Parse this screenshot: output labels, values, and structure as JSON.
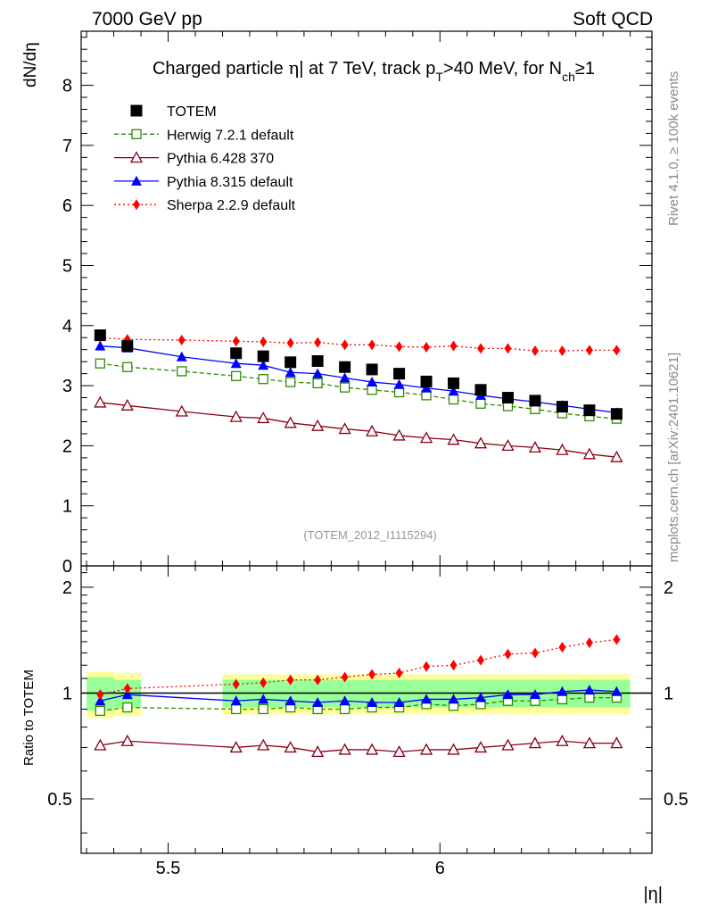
{
  "header": {
    "left": "7000 GeV pp",
    "right": "Soft QCD"
  },
  "side_labels": {
    "rivet": "Rivet 4.1.0, ≥ 100k events",
    "mcplots": "mcplots.cern.ch [arXiv:2401.10621]"
  },
  "colors": {
    "totem": "#000000",
    "herwig": "#2e8b00",
    "pythia6": "#8b0014",
    "pythia8": "#0000ff",
    "sherpa": "#ff0000",
    "band_inner": "#99ff99",
    "band_outer": "#ffff99"
  },
  "chart_data": [
    {
      "type": "scatter",
      "title_parts": {
        "t1": "Charged particle ",
        "t2": "η",
        "t3": "| at 7 TeV, track p",
        "t3_sub": "T",
        "t4": ">40 MeV, for N",
        "t4_sub": "ch",
        "t5": "≥1"
      },
      "ylabel": "dN/dη",
      "xlabel": "|η|",
      "xlim": [
        5.34,
        6.39
      ],
      "ylim": [
        0,
        8.9
      ],
      "yticks": [
        0,
        1,
        2,
        3,
        4,
        5,
        6,
        7,
        8
      ],
      "annotation": "(TOTEM_2012_I1115294)",
      "series": [
        {
          "name": "TOTEM",
          "marker": "filled-square",
          "x": [
            5.375,
            5.425,
            5.625,
            5.675,
            5.725,
            5.775,
            5.825,
            5.875,
            5.925,
            5.975,
            6.025,
            6.075,
            6.125,
            6.175,
            6.225,
            6.275,
            6.325
          ],
          "y": [
            3.84,
            3.66,
            3.54,
            3.49,
            3.39,
            3.41,
            3.31,
            3.27,
            3.2,
            3.07,
            3.04,
            2.93,
            2.8,
            2.75,
            2.65,
            2.59,
            2.53
          ]
        },
        {
          "name": "Herwig 7.2.1 default",
          "marker": "open-square",
          "x": [
            5.375,
            5.425,
            5.525,
            5.625,
            5.675,
            5.725,
            5.775,
            5.825,
            5.875,
            5.925,
            5.975,
            6.025,
            6.075,
            6.125,
            6.175,
            6.225,
            6.275,
            6.325
          ],
          "y": [
            3.37,
            3.31,
            3.24,
            3.16,
            3.11,
            3.06,
            3.04,
            2.97,
            2.93,
            2.89,
            2.84,
            2.77,
            2.7,
            2.66,
            2.61,
            2.54,
            2.49,
            2.45
          ]
        },
        {
          "name": "Pythia 6.428 370",
          "marker": "open-triangle",
          "x": [
            5.375,
            5.425,
            5.525,
            5.625,
            5.675,
            5.725,
            5.775,
            5.825,
            5.875,
            5.925,
            5.975,
            6.025,
            6.075,
            6.125,
            6.175,
            6.225,
            6.275,
            6.325
          ],
          "y": [
            2.72,
            2.67,
            2.57,
            2.48,
            2.46,
            2.38,
            2.33,
            2.28,
            2.24,
            2.17,
            2.13,
            2.1,
            2.04,
            2.0,
            1.97,
            1.93,
            1.86,
            1.81
          ]
        },
        {
          "name": "Pythia 8.315 default",
          "marker": "filled-triangle",
          "x": [
            5.375,
            5.425,
            5.525,
            5.625,
            5.675,
            5.725,
            5.775,
            5.825,
            5.875,
            5.925,
            5.975,
            6.025,
            6.075,
            6.125,
            6.175,
            6.225,
            6.275,
            6.325
          ],
          "y": [
            3.66,
            3.63,
            3.48,
            3.37,
            3.34,
            3.22,
            3.2,
            3.13,
            3.06,
            3.02,
            2.96,
            2.91,
            2.84,
            2.78,
            2.73,
            2.67,
            2.61,
            2.55
          ]
        },
        {
          "name": "Sherpa 2.2.9 default",
          "marker": "diamond",
          "x": [
            5.375,
            5.425,
            5.525,
            5.625,
            5.675,
            5.725,
            5.775,
            5.825,
            5.875,
            5.925,
            5.975,
            6.025,
            6.075,
            6.125,
            6.175,
            6.225,
            6.275,
            6.325
          ],
          "y": [
            3.8,
            3.77,
            3.76,
            3.74,
            3.73,
            3.71,
            3.72,
            3.68,
            3.68,
            3.65,
            3.64,
            3.66,
            3.62,
            3.62,
            3.58,
            3.58,
            3.59,
            3.59
          ]
        }
      ]
    },
    {
      "type": "scatter",
      "title": "",
      "ylabel": "Ratio to TOTEM",
      "xlabel": "|η|",
      "xlim": [
        5.34,
        6.39
      ],
      "ylim": [
        0.35,
        2.3
      ],
      "yticks": [
        0.5,
        1,
        2
      ],
      "xticks": [
        5.5,
        6
      ],
      "reference": 1.0,
      "bands": [
        {
          "x0": 5.35,
          "x1": 5.4,
          "inner": [
            0.89,
            1.11
          ],
          "outer": [
            0.85,
            1.15
          ]
        },
        {
          "x0": 5.4,
          "x1": 5.45,
          "inner": [
            0.91,
            1.09
          ],
          "outer": [
            0.86,
            1.14
          ]
        },
        {
          "x0": 5.6,
          "x1": 6.35,
          "inner": [
            0.91,
            1.09
          ],
          "outer": [
            0.87,
            1.13
          ]
        }
      ],
      "series": [
        {
          "name": "Herwig 7.2.1 default",
          "marker": "open-square",
          "x": [
            5.375,
            5.425,
            5.625,
            5.675,
            5.725,
            5.775,
            5.825,
            5.875,
            5.925,
            5.975,
            6.025,
            6.075,
            6.125,
            6.175,
            6.225,
            6.275,
            6.325
          ],
          "y": [
            0.89,
            0.91,
            0.9,
            0.9,
            0.91,
            0.9,
            0.9,
            0.91,
            0.91,
            0.93,
            0.92,
            0.93,
            0.95,
            0.95,
            0.96,
            0.97,
            0.97
          ]
        },
        {
          "name": "Pythia 6.428 370",
          "marker": "open-triangle",
          "x": [
            5.375,
            5.425,
            5.625,
            5.675,
            5.725,
            5.775,
            5.825,
            5.875,
            5.925,
            5.975,
            6.025,
            6.075,
            6.125,
            6.175,
            6.225,
            6.275,
            6.325
          ],
          "y": [
            0.71,
            0.73,
            0.7,
            0.71,
            0.7,
            0.68,
            0.69,
            0.69,
            0.68,
            0.69,
            0.69,
            0.7,
            0.71,
            0.72,
            0.73,
            0.72,
            0.72
          ]
        },
        {
          "name": "Pythia 8.315 default",
          "marker": "filled-triangle",
          "x": [
            5.375,
            5.425,
            5.625,
            5.675,
            5.725,
            5.775,
            5.825,
            5.875,
            5.925,
            5.975,
            6.025,
            6.075,
            6.125,
            6.175,
            6.225,
            6.275,
            6.325
          ],
          "y": [
            0.95,
            0.99,
            0.95,
            0.96,
            0.95,
            0.94,
            0.95,
            0.94,
            0.94,
            0.96,
            0.96,
            0.97,
            0.99,
            0.99,
            1.01,
            1.02,
            1.01
          ]
        },
        {
          "name": "Sherpa 2.2.9 default",
          "marker": "diamond",
          "x": [
            5.375,
            5.425,
            5.625,
            5.675,
            5.725,
            5.775,
            5.825,
            5.875,
            5.925,
            5.975,
            6.025,
            6.075,
            6.125,
            6.175,
            6.225,
            6.275,
            6.325
          ],
          "y": [
            0.99,
            1.03,
            1.06,
            1.07,
            1.09,
            1.09,
            1.11,
            1.13,
            1.14,
            1.19,
            1.2,
            1.24,
            1.29,
            1.3,
            1.35,
            1.39,
            1.42
          ]
        }
      ]
    }
  ]
}
